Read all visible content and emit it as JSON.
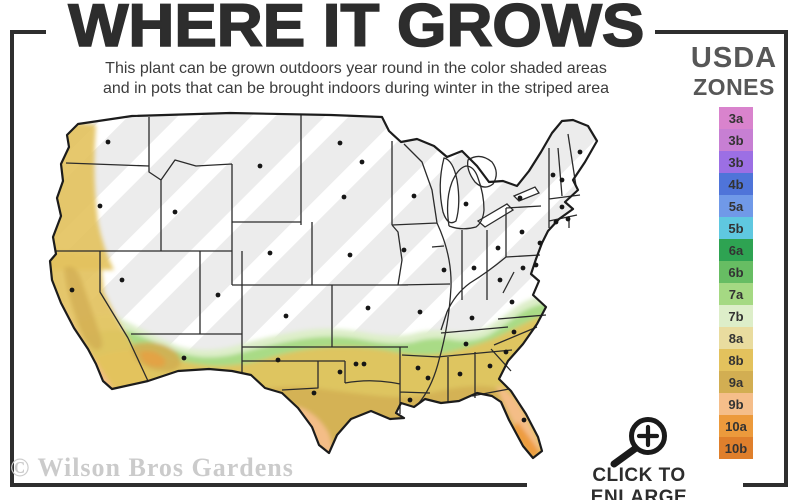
{
  "header": {
    "title": "WHERE IT GROWS",
    "subtitle_line1": "This plant can be grown outdoors year round in the color shaded areas",
    "subtitle_line2": "and in pots that can be brought indoors during winter in the striped area"
  },
  "legend": {
    "title_line1": "USDA",
    "title_line2": "ZONES",
    "zones": [
      {
        "label": "3a",
        "color": "#d983cd"
      },
      {
        "label": "3b",
        "color": "#c77fd3"
      },
      {
        "label": "3b",
        "color": "#9c6fe4"
      },
      {
        "label": "4b",
        "color": "#4f74d9"
      },
      {
        "label": "5a",
        "color": "#7099e8"
      },
      {
        "label": "5b",
        "color": "#5fc8e0"
      },
      {
        "label": "6a",
        "color": "#2ea352"
      },
      {
        "label": "6b",
        "color": "#67bd63"
      },
      {
        "label": "7a",
        "color": "#a5d983"
      },
      {
        "label": "7b",
        "color": "#ddeec9"
      },
      {
        "label": "8a",
        "color": "#e9dc9f"
      },
      {
        "label": "8b",
        "color": "#e3c25d"
      },
      {
        "label": "9a",
        "color": "#d2ae52"
      },
      {
        "label": "9b",
        "color": "#f5be8a"
      },
      {
        "label": "10a",
        "color": "#ec9a3c"
      },
      {
        "label": "10b",
        "color": "#df7f2c"
      }
    ]
  },
  "map": {
    "base_fill": "#ececec",
    "stripe_color": "#ffffff",
    "border_color": "#2b2b2b",
    "outline_color": "#1c1c1c",
    "dot_color": "#161616"
  },
  "watermark": {
    "text": "© Wilson Bros Gardens"
  },
  "enlarge": {
    "label": "CLICK TO ENLARGE",
    "icon": "magnifier-plus-icon"
  },
  "frame": {
    "color": "#2e2e2e"
  }
}
